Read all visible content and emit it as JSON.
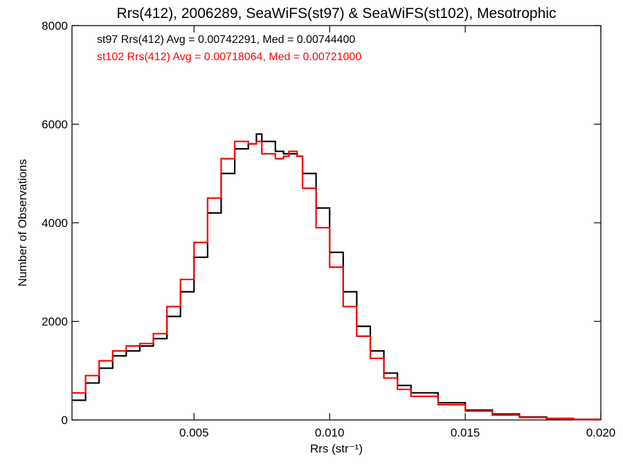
{
  "chart_data": {
    "type": "line",
    "title": "Rrs(412), 2006289, SeaWiFS(st97) & SeaWiFS(st102), Mesotrophic",
    "xlabel": "Rrs (str⁻¹)",
    "ylabel": "Number of Observations",
    "xlim": [
      0.0005,
      0.02
    ],
    "ylim": [
      0,
      8000
    ],
    "x_ticks": [
      {
        "value": 0.005,
        "label": "0.005"
      },
      {
        "value": 0.01,
        "label": "0.010"
      },
      {
        "value": 0.015,
        "label": "0.015"
      },
      {
        "value": 0.02,
        "label": "0.020"
      }
    ],
    "y_ticks": [
      {
        "value": 0,
        "label": "0"
      },
      {
        "value": 2000,
        "label": "2000"
      },
      {
        "value": 4000,
        "label": "4000"
      },
      {
        "value": 6000,
        "label": "6000"
      },
      {
        "value": 8000,
        "label": "8000"
      }
    ],
    "grid": false,
    "step": true,
    "annotations": [
      {
        "text": "st97 Rrs(412) Avg = 0.00742291, Med = 0.00744400",
        "color": "#000000"
      },
      {
        "text": "st102 Rrs(412) Avg = 0.00718064, Med = 0.00721000",
        "color": "#ff0000"
      }
    ],
    "x": [
      0.0005,
      0.001,
      0.0015,
      0.002,
      0.0025,
      0.003,
      0.0035,
      0.004,
      0.0045,
      0.005,
      0.0055,
      0.006,
      0.0065,
      0.007,
      0.0073,
      0.0075,
      0.008,
      0.0083,
      0.0085,
      0.0088,
      0.009,
      0.0095,
      0.01,
      0.0105,
      0.011,
      0.0115,
      0.012,
      0.0125,
      0.013,
      0.014,
      0.015,
      0.016,
      0.017,
      0.018,
      0.019,
      0.02
    ],
    "series": [
      {
        "name": "st97",
        "color": "#000000",
        "values": [
          400,
          750,
          1050,
          1300,
          1400,
          1500,
          1650,
          2100,
          2600,
          3300,
          4200,
          5000,
          5500,
          5600,
          5800,
          5650,
          5450,
          5400,
          5400,
          5350,
          5000,
          4300,
          3400,
          2600,
          1900,
          1400,
          950,
          700,
          550,
          350,
          200,
          120,
          60,
          30,
          12,
          5
        ]
      },
      {
        "name": "st102",
        "color": "#ff0000",
        "values": [
          550,
          900,
          1200,
          1400,
          1500,
          1550,
          1750,
          2300,
          2850,
          3600,
          4500,
          5300,
          5650,
          5600,
          5650,
          5400,
          5300,
          5350,
          5450,
          5350,
          4700,
          3900,
          3100,
          2300,
          1700,
          1250,
          850,
          620,
          480,
          310,
          180,
          100,
          50,
          25,
          10,
          4
        ]
      }
    ]
  }
}
